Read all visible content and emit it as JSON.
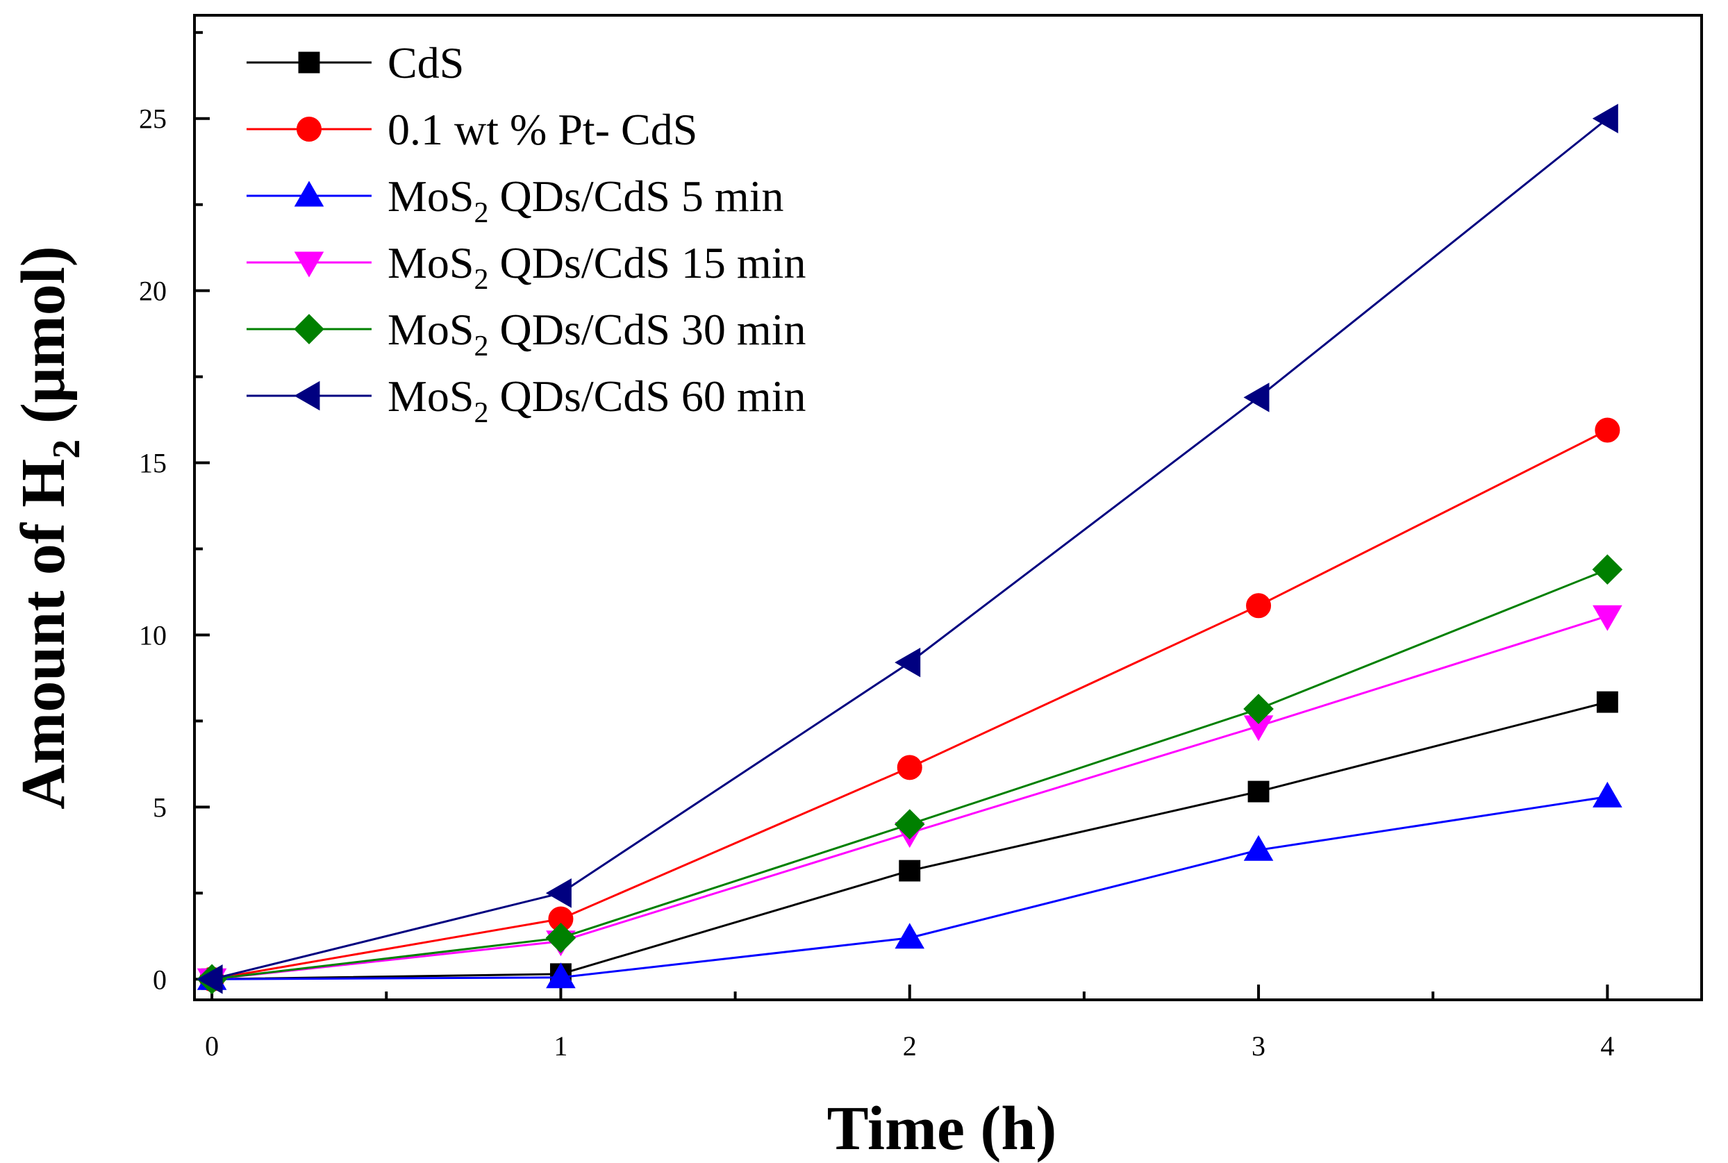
{
  "chart_data": {
    "type": "line",
    "title": "",
    "xlabel": "Time (h)",
    "ylabel_main": "Amount of H",
    "ylabel_sub": "2",
    "ylabel_unit": " (μmol)",
    "xlim": [
      -0.05,
      4.27
    ],
    "ylim": [
      -0.6,
      28.0
    ],
    "x": [
      0,
      1,
      2,
      3,
      4
    ],
    "x_ticks": [
      0,
      1,
      2,
      3,
      4
    ],
    "x_tick_labels": [
      "0",
      "1",
      "2",
      "3",
      "4"
    ],
    "y_ticks": [
      0,
      5,
      10,
      15,
      20,
      25
    ],
    "y_tick_labels": [
      "0",
      "5",
      "10",
      "15",
      "20",
      "25"
    ],
    "legend_position": "top-left",
    "series": [
      {
        "name": "CdS",
        "name_main": "CdS",
        "name_sub": "",
        "name_rest": "",
        "color": "#000000",
        "marker": "square",
        "values": [
          0,
          0.15,
          3.15,
          5.45,
          8.05
        ]
      },
      {
        "name": "0.1 wt % Pt- CdS",
        "name_main": "0.1 wt % Pt- CdS",
        "name_sub": "",
        "name_rest": "",
        "color": "#ff0000",
        "marker": "circle",
        "values": [
          0,
          1.75,
          6.15,
          10.85,
          15.95
        ]
      },
      {
        "name": "MoS2 QDs/CdS 5 min",
        "name_main": "MoS",
        "name_sub": "2",
        "name_rest": " QDs/CdS 5 min",
        "color": "#0000ff",
        "marker": "triangle-up",
        "values": [
          0,
          0.05,
          1.2,
          3.75,
          5.3
        ]
      },
      {
        "name": "MoS2 QDs/CdS 15 min",
        "name_main": "MoS",
        "name_sub": "2",
        "name_rest": " QDs/CdS 15 min",
        "color": "#ff00ff",
        "marker": "triangle-down",
        "values": [
          0,
          1.1,
          4.25,
          7.35,
          10.55
        ]
      },
      {
        "name": "MoS2 QDs/CdS 30 min",
        "name_main": "MoS",
        "name_sub": "2",
        "name_rest": " QDs/CdS 30 min",
        "color": "#008000",
        "marker": "diamond",
        "values": [
          0,
          1.2,
          4.5,
          7.85,
          11.9
        ]
      },
      {
        "name": "MoS2 QDs/CdS 60 min",
        "name_main": "MoS",
        "name_sub": "2",
        "name_rest": " QDs/CdS 60 min",
        "color": "#000080",
        "marker": "triangle-left",
        "values": [
          0,
          2.5,
          9.2,
          16.9,
          25.0
        ]
      }
    ]
  }
}
